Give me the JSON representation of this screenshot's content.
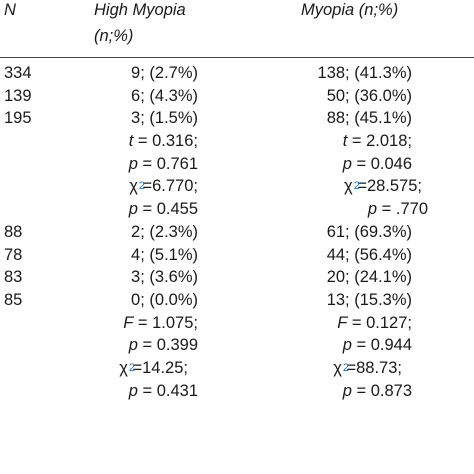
{
  "header": {
    "n": "N",
    "high_myopia": "High Myopia",
    "high_myopia_sub": "(n;%)",
    "myopia": "Myopia (n;%)"
  },
  "colors": {
    "text": "#1a1a1a",
    "superscript": "#1f6fb4",
    "rule": "#444444"
  },
  "group1": {
    "rows": [
      {
        "n": "334",
        "high_myopia": "9; (2.7%)",
        "myopia": "138; (41.3%)"
      },
      {
        "n": "139",
        "high_myopia": "6; (4.3%)",
        "myopia": "50; (36.0%)"
      },
      {
        "n": "195",
        "high_myopia": "3; (1.5%)",
        "myopia": "88; (45.1%)"
      }
    ],
    "stats_high_myopia": {
      "t": "= 0.316;",
      "p1": "= 0.761",
      "chi": "=6.770;",
      "p2": "= 0.455"
    },
    "stats_myopia": {
      "t": "= 2.018;",
      "p1": "= 0.046",
      "chi": "=28.575;",
      "p2": "= .770"
    }
  },
  "group2": {
    "rows": [
      {
        "n": "88",
        "high_myopia": "2; (2.3%)",
        "myopia": "61; (69.3%)"
      },
      {
        "n": "78",
        "high_myopia": "4; (5.1%)",
        "myopia": "44; (56.4%)"
      },
      {
        "n": "83",
        "high_myopia": "3; (3.6%)",
        "myopia": "20; (24.1%)"
      },
      {
        "n": "85",
        "high_myopia": "0; (0.0%)",
        "myopia": "13; (15.3%)"
      }
    ],
    "stats_high_myopia": {
      "f": "= 1.075;",
      "p1": "= 0.399",
      "chi": "=14.25;",
      "p2": "= 0.431"
    },
    "stats_myopia": {
      "f": "= 0.127;",
      "p1": "= 0.944",
      "chi": "=88.73;",
      "p2": "= 0.873"
    }
  },
  "symbols": {
    "t": "t",
    "p": "p",
    "f": "F",
    "chi": "χ",
    "two": "2"
  }
}
